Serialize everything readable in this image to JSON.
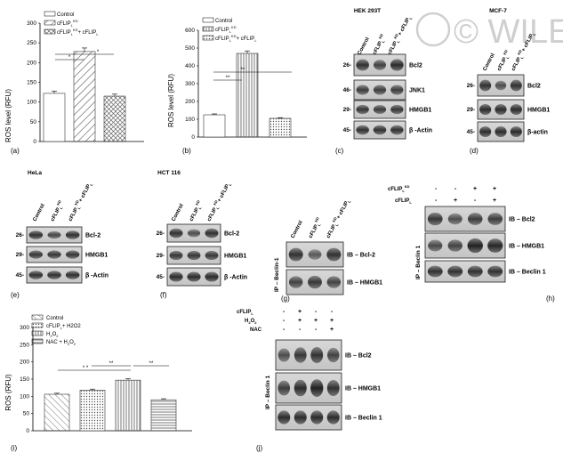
{
  "watermark": "© WILEY",
  "panels": {
    "a": {
      "letter": "(a)",
      "chart_data": {
        "type": "bar",
        "ylabel": "ROS level (RFU)",
        "ylim": [
          0,
          300
        ],
        "yticks": [
          "0",
          "50",
          "100",
          "150",
          "200",
          "250",
          "300"
        ],
        "series": [
          {
            "name": "Control",
            "value": 122,
            "err": 6,
            "fill": "#ffffff"
          },
          {
            "name": "cFLIP_L^KD",
            "value": 228,
            "err": 9,
            "fill": "hatch"
          },
          {
            "name": "cFLIP_L^KD + cFLIP_L",
            "value": 115,
            "err": 5,
            "fill": "cross"
          }
        ],
        "legend": [
          "Control",
          "cFLIP",
          "cFLIP",
          "+ cFLIP"
        ],
        "legend_sup": [
          "KD",
          "KD"
        ],
        "legend_sub": [
          "L",
          "L",
          "L"
        ],
        "significance": [
          "*",
          "*"
        ]
      }
    },
    "b": {
      "letter": "(b)",
      "chart_data": {
        "type": "bar",
        "ylabel": "ROS level (RFU)",
        "ylim": [
          0,
          600
        ],
        "yticks": [
          "0",
          "100",
          "200",
          "300",
          "400",
          "500",
          "600"
        ],
        "series": [
          {
            "name": "Control",
            "value": 125,
            "err": 5,
            "fill": "#ffffff"
          },
          {
            "name": "cFLIP_L^KD",
            "value": 470,
            "err": 14,
            "fill": "vlines"
          },
          {
            "name": "cFLIP_L^KD + cFLIP_L",
            "value": 105,
            "err": 4,
            "fill": "dense"
          }
        ],
        "legend": [
          "Control",
          "cFLIP",
          "cFLIP",
          "+ cFLIP"
        ],
        "legend_sup": [
          "KD",
          "KD"
        ],
        "legend_sub": [
          "L",
          "L",
          "L"
        ],
        "significance": [
          "**",
          "**"
        ]
      }
    },
    "c": {
      "letter": "(c)",
      "cell_line": "HEK 293T",
      "lanes": [
        "Control",
        "cFLIP",
        "cFLIP",
        "+ cFLIP"
      ],
      "lane_sup": [
        "KD",
        "KD"
      ],
      "lane_sub": [
        "L",
        "L",
        "L"
      ],
      "markers": [
        "26-",
        "46-",
        "29-",
        "45-"
      ],
      "blots": [
        "Bcl2",
        "JNK1",
        "HMGB1",
        "β -Actin"
      ]
    },
    "d": {
      "letter": "(d)",
      "cell_line": "MCF-7",
      "markers": [
        "26-",
        "29-",
        "45-"
      ],
      "blots": [
        "Bcl2",
        "HMGB1",
        "β-actin"
      ]
    },
    "e": {
      "letter": "(e)",
      "cell_line": "HeLa",
      "markers": [
        "26-",
        "29-",
        "45-"
      ],
      "blots": [
        "Bcl-2",
        "HMGB1",
        "β -Actin"
      ]
    },
    "f": {
      "letter": "(f)",
      "cell_line": "HCT 116",
      "markers": [
        "26-",
        "29-",
        "45-"
      ],
      "blots": [
        "Bcl-2",
        "HMGB1",
        "β -Actin"
      ]
    },
    "g": {
      "letter": "(g)",
      "ip": "IP – Beclin-1",
      "blots": [
        "IB – Bcl-2",
        "IB – HMGB1"
      ]
    },
    "h": {
      "letter": "(h)",
      "row1_label": "cFLIP",
      "row1_sup": "KD",
      "row1_sub": "L",
      "row2_label": "cFLIP",
      "row2_sub": "L",
      "row1_signs": [
        "-",
        "-",
        "+",
        "+"
      ],
      "row2_signs": [
        "-",
        "+",
        "-",
        "+"
      ],
      "ip": "IP – Beclin 1",
      "blots": [
        "IB – Bcl2",
        "IB – HMGB1",
        "IB – Beclin 1"
      ]
    },
    "i": {
      "letter": "(i)",
      "chart_data": {
        "type": "bar",
        "ylabel": "ROS (RFU)",
        "ylim": [
          0,
          300
        ],
        "yticks": [
          "0",
          "50",
          "100",
          "150",
          "200",
          "250",
          "300"
        ],
        "series": [
          {
            "name": "Control",
            "value": 106,
            "err": 3,
            "fill": "diag"
          },
          {
            "name": "cFLIP_L + H2O2",
            "value": 118,
            "err": 3,
            "fill": "dense"
          },
          {
            "name": "H2O2",
            "value": 147,
            "err": 4,
            "fill": "vlines"
          },
          {
            "name": "NAC + H2O2",
            "value": 90,
            "err": 3,
            "fill": "hlines"
          }
        ],
        "legend": [
          "Control",
          "cFLIP",
          "+ H2O2",
          "H",
          "O",
          "NAC + H",
          "O"
        ],
        "legend_sub": [
          "L",
          "2",
          "2",
          "2",
          "2"
        ],
        "significance": [
          "* *",
          "**",
          "**"
        ]
      }
    },
    "j": {
      "letter": "(j)",
      "row_labels": [
        "cFLIP",
        "H",
        "O",
        "NAC"
      ],
      "row_subs": [
        "L",
        "2",
        "2"
      ],
      "row1_signs": [
        "-",
        "+",
        "-",
        "-"
      ],
      "row2_signs": [
        "-",
        "+",
        "+",
        "+"
      ],
      "row3_signs": [
        "-",
        "-",
        "-",
        "+"
      ],
      "ip": "IP – Beclin 1",
      "blots": [
        "IB – Bcl2",
        "IB – HMGB1",
        "IB – Beclin 1"
      ]
    }
  }
}
